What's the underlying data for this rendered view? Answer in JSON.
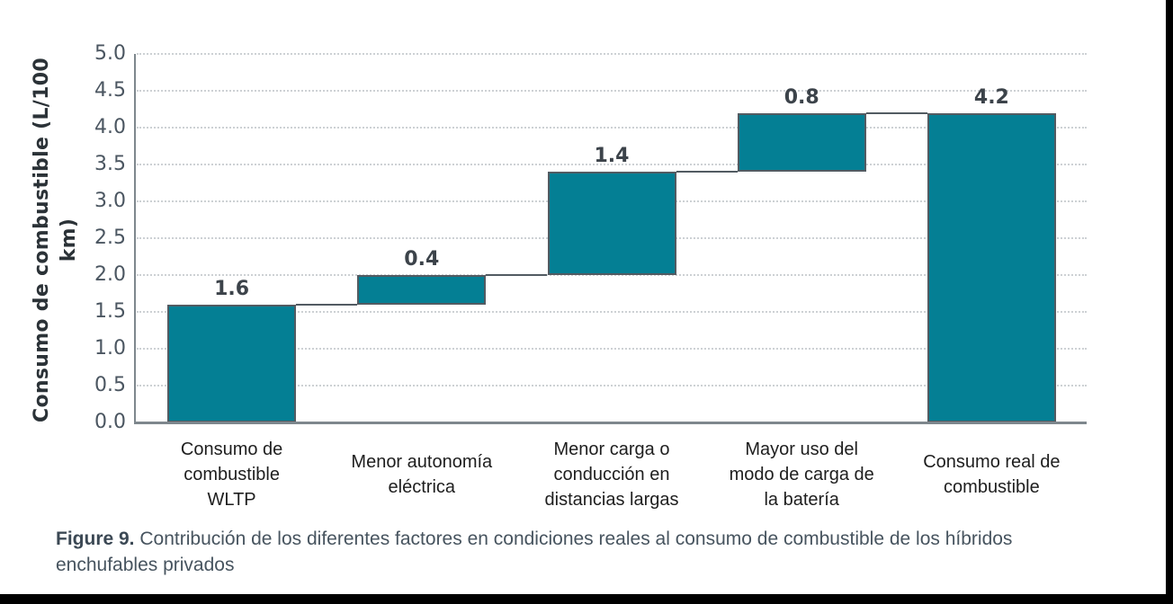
{
  "figure": {
    "caption_label": "Figure 9.",
    "caption_text": "Contribución de los diferentes factores en condiciones reales al consumo de combustible de los híbridos enchufables privados"
  },
  "chart_data": {
    "type": "bar",
    "subtype": "waterfall",
    "title": "",
    "xlabel": "",
    "ylabel": "Consumo de combustible (L/100 km)",
    "ylim": [
      0,
      5
    ],
    "ytick_step": 0.5,
    "grid": "horizontal-dotted",
    "legend": "none",
    "categories": [
      "Consumo de combustible WLTP",
      "Menor autonomía eléctrica",
      "Menor carga o conducción en distancias largas",
      "Mayor uso del modo de carga de la batería",
      "Consumo real de combustible"
    ],
    "category_lines": [
      [
        "Consumo de",
        "combustible",
        "WLTP"
      ],
      [
        "Menor autonomía",
        "eléctrica"
      ],
      [
        "Menor carga o",
        "conducción en",
        "distancias largas"
      ],
      [
        "Mayor uso del",
        "modo de carga de",
        "la batería"
      ],
      [
        "Consumo real de",
        "combustible"
      ]
    ],
    "series": [
      {
        "name": "Consumo de combustible (L/100 km)",
        "values": [
          1.6,
          0.4,
          1.4,
          0.8,
          4.2
        ],
        "starts": [
          0,
          1.6,
          2.0,
          3.4,
          0
        ],
        "ends": [
          1.6,
          2.0,
          3.4,
          4.2,
          4.2
        ]
      }
    ],
    "bar_labels": [
      "1.6",
      "0.4",
      "1.4",
      "0.8",
      "4.2"
    ],
    "colors": {
      "bar_fill": "#047f94",
      "bar_outline": "#525b62",
      "axis_line": "#7e878d",
      "gridline": "#cdd1d4",
      "tick_text": "#4b5661",
      "value_text": "#3c434a",
      "category_text": "#1e1e1e",
      "caption_text": "#47545f"
    }
  }
}
